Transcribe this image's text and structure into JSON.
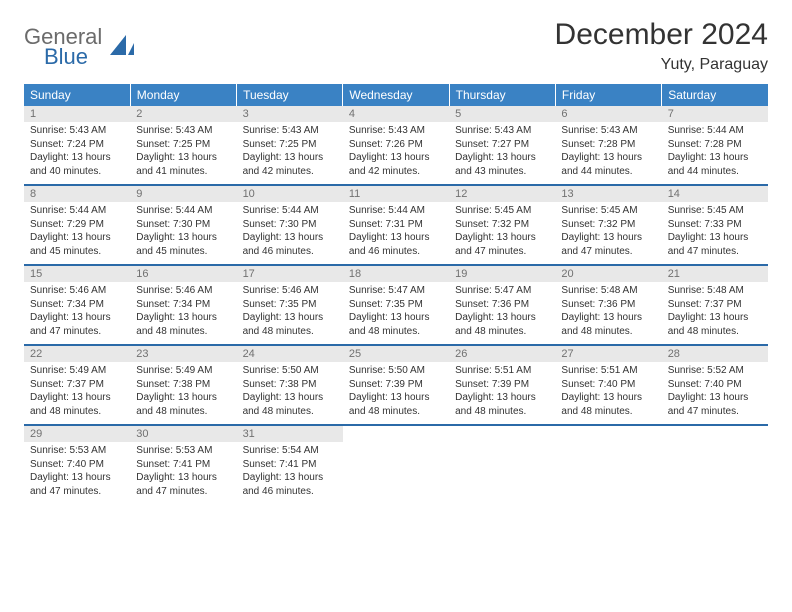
{
  "logo": {
    "word1": "General",
    "word2": "Blue"
  },
  "title": "December 2024",
  "location": "Yuty, Paraguay",
  "colors": {
    "header_bg": "#3a82c4",
    "row_divider": "#2b6aa8",
    "daynum_bg": "#e8e8e8",
    "daynum_fg": "#717171",
    "page_bg": "#ffffff",
    "text": "#333333",
    "logo_gray": "#6b6b6b",
    "logo_blue": "#2b6aa8"
  },
  "weekdays": [
    "Sunday",
    "Monday",
    "Tuesday",
    "Wednesday",
    "Thursday",
    "Friday",
    "Saturday"
  ],
  "weeks": [
    [
      {
        "n": "1",
        "sr": "5:43 AM",
        "ss": "7:24 PM",
        "dl": "13 hours and 40 minutes."
      },
      {
        "n": "2",
        "sr": "5:43 AM",
        "ss": "7:25 PM",
        "dl": "13 hours and 41 minutes."
      },
      {
        "n": "3",
        "sr": "5:43 AM",
        "ss": "7:25 PM",
        "dl": "13 hours and 42 minutes."
      },
      {
        "n": "4",
        "sr": "5:43 AM",
        "ss": "7:26 PM",
        "dl": "13 hours and 42 minutes."
      },
      {
        "n": "5",
        "sr": "5:43 AM",
        "ss": "7:27 PM",
        "dl": "13 hours and 43 minutes."
      },
      {
        "n": "6",
        "sr": "5:43 AM",
        "ss": "7:28 PM",
        "dl": "13 hours and 44 minutes."
      },
      {
        "n": "7",
        "sr": "5:44 AM",
        "ss": "7:28 PM",
        "dl": "13 hours and 44 minutes."
      }
    ],
    [
      {
        "n": "8",
        "sr": "5:44 AM",
        "ss": "7:29 PM",
        "dl": "13 hours and 45 minutes."
      },
      {
        "n": "9",
        "sr": "5:44 AM",
        "ss": "7:30 PM",
        "dl": "13 hours and 45 minutes."
      },
      {
        "n": "10",
        "sr": "5:44 AM",
        "ss": "7:30 PM",
        "dl": "13 hours and 46 minutes."
      },
      {
        "n": "11",
        "sr": "5:44 AM",
        "ss": "7:31 PM",
        "dl": "13 hours and 46 minutes."
      },
      {
        "n": "12",
        "sr": "5:45 AM",
        "ss": "7:32 PM",
        "dl": "13 hours and 47 minutes."
      },
      {
        "n": "13",
        "sr": "5:45 AM",
        "ss": "7:32 PM",
        "dl": "13 hours and 47 minutes."
      },
      {
        "n": "14",
        "sr": "5:45 AM",
        "ss": "7:33 PM",
        "dl": "13 hours and 47 minutes."
      }
    ],
    [
      {
        "n": "15",
        "sr": "5:46 AM",
        "ss": "7:34 PM",
        "dl": "13 hours and 47 minutes."
      },
      {
        "n": "16",
        "sr": "5:46 AM",
        "ss": "7:34 PM",
        "dl": "13 hours and 48 minutes."
      },
      {
        "n": "17",
        "sr": "5:46 AM",
        "ss": "7:35 PM",
        "dl": "13 hours and 48 minutes."
      },
      {
        "n": "18",
        "sr": "5:47 AM",
        "ss": "7:35 PM",
        "dl": "13 hours and 48 minutes."
      },
      {
        "n": "19",
        "sr": "5:47 AM",
        "ss": "7:36 PM",
        "dl": "13 hours and 48 minutes."
      },
      {
        "n": "20",
        "sr": "5:48 AM",
        "ss": "7:36 PM",
        "dl": "13 hours and 48 minutes."
      },
      {
        "n": "21",
        "sr": "5:48 AM",
        "ss": "7:37 PM",
        "dl": "13 hours and 48 minutes."
      }
    ],
    [
      {
        "n": "22",
        "sr": "5:49 AM",
        "ss": "7:37 PM",
        "dl": "13 hours and 48 minutes."
      },
      {
        "n": "23",
        "sr": "5:49 AM",
        "ss": "7:38 PM",
        "dl": "13 hours and 48 minutes."
      },
      {
        "n": "24",
        "sr": "5:50 AM",
        "ss": "7:38 PM",
        "dl": "13 hours and 48 minutes."
      },
      {
        "n": "25",
        "sr": "5:50 AM",
        "ss": "7:39 PM",
        "dl": "13 hours and 48 minutes."
      },
      {
        "n": "26",
        "sr": "5:51 AM",
        "ss": "7:39 PM",
        "dl": "13 hours and 48 minutes."
      },
      {
        "n": "27",
        "sr": "5:51 AM",
        "ss": "7:40 PM",
        "dl": "13 hours and 48 minutes."
      },
      {
        "n": "28",
        "sr": "5:52 AM",
        "ss": "7:40 PM",
        "dl": "13 hours and 47 minutes."
      }
    ],
    [
      {
        "n": "29",
        "sr": "5:53 AM",
        "ss": "7:40 PM",
        "dl": "13 hours and 47 minutes."
      },
      {
        "n": "30",
        "sr": "5:53 AM",
        "ss": "7:41 PM",
        "dl": "13 hours and 47 minutes."
      },
      {
        "n": "31",
        "sr": "5:54 AM",
        "ss": "7:41 PM",
        "dl": "13 hours and 46 minutes."
      },
      null,
      null,
      null,
      null
    ]
  ],
  "labels": {
    "sunrise": "Sunrise: ",
    "sunset": "Sunset: ",
    "daylight": "Daylight: "
  }
}
